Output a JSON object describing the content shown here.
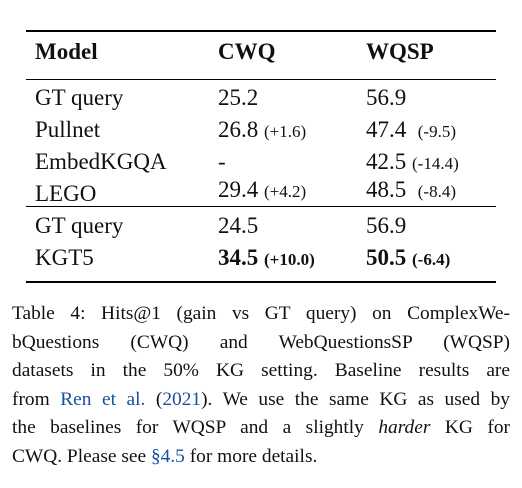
{
  "table": {
    "headers": [
      "Model",
      "CWQ",
      "WQSP"
    ],
    "rows": [
      {
        "model": "GT query",
        "cwq": "25.2",
        "cwq_gain": "",
        "wqsp": "56.9",
        "wqsp_gain": ""
      },
      {
        "model": "Pullnet",
        "cwq": "26.8",
        "cwq_gain": "(+1.6)",
        "wqsp": "47.4",
        "wqsp_gain": "(-9.5)"
      },
      {
        "model": "EmbedKGQA",
        "cwq": "-",
        "cwq_gain": "",
        "wqsp": "42.5",
        "wqsp_gain": "(-14.4)"
      },
      {
        "model": "LEGO",
        "cwq": "29.4",
        "cwq_gain": "(+4.2)",
        "wqsp": "48.5",
        "wqsp_gain": "(-8.4)"
      },
      {
        "model": "GT query",
        "cwq": "24.5",
        "cwq_gain": "",
        "wqsp": "56.9",
        "wqsp_gain": ""
      },
      {
        "model": "KGT5",
        "cwq": "34.5",
        "cwq_gain": "(+10.0)",
        "wqsp": "50.5",
        "wqsp_gain": "(-6.4)"
      }
    ]
  },
  "caption": {
    "l1": "Table 4: Hits@1 (gain vs GT query) on ComplexWe-",
    "l2": "bQuestions (CWQ) and WebQuestionsSP (WQSP)",
    "l3": "datasets in the 50% KG setting. Baseline results are",
    "l4_pre": "from ",
    "l4_link": "Ren et al.",
    "l4_mid": " (",
    "l4_year": "2021",
    "l4_post": "). We use the same KG as used by",
    "l5": "the baselines for WQSP and a slightly ",
    "l5_em": "harder",
    "l5_post": " KG for",
    "l6_pre": "CWQ. Please see ",
    "l6_link": "§4.5",
    "l6_post": " for more details."
  },
  "colors": {
    "link": "#1a4fa0",
    "text": "#111111"
  }
}
